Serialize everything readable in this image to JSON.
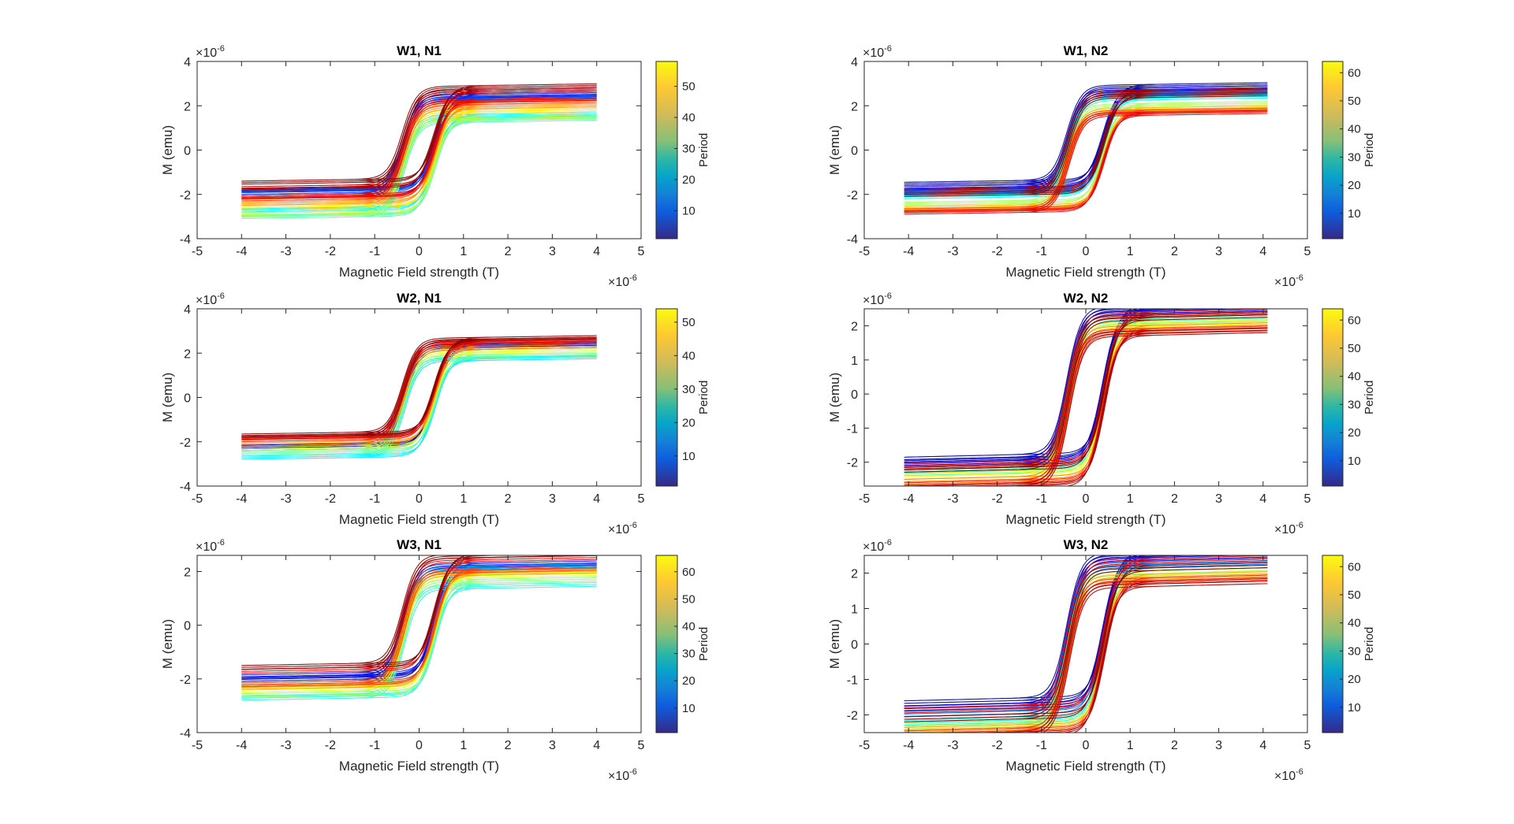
{
  "chart_data": [
    {
      "type": "line",
      "title": "W1, N1",
      "xlabel": "Magnetic Field strength (T)",
      "ylabel": "M (emu)",
      "xlim": [
        -5,
        5
      ],
      "ylim": [
        -4,
        4
      ],
      "xticks": [
        -5,
        -4,
        -3,
        -2,
        -1,
        0,
        1,
        2,
        3,
        4,
        5
      ],
      "yticks": [
        -4,
        -2,
        0,
        2,
        4
      ],
      "x_multiplier": "×10",
      "x_exponent": "-6",
      "y_multiplier": "×10",
      "y_exponent": "-6",
      "coercivity": 0.35,
      "h_max": 4.0,
      "colorbar": {
        "label": "Period",
        "range": [
          1,
          58
        ],
        "ticks": [
          10,
          20,
          30,
          40,
          50
        ]
      },
      "series": [
        {
          "period": 2,
          "m_upper": 2.6,
          "m_lower": -1.7
        },
        {
          "period": 6,
          "m_upper": 2.4,
          "m_lower": -2.0
        },
        {
          "period": 12,
          "m_upper": 2.3,
          "m_lower": -1.8
        },
        {
          "period": 22,
          "m_upper": 1.5,
          "m_lower": -2.6
        },
        {
          "period": 27,
          "m_upper": 1.3,
          "m_lower": -2.9
        },
        {
          "period": 32,
          "m_upper": 1.4,
          "m_lower": -2.8
        },
        {
          "period": 38,
          "m_upper": 1.7,
          "m_lower": -2.5
        },
        {
          "period": 43,
          "m_upper": 1.9,
          "m_lower": -2.3
        },
        {
          "period": 48,
          "m_upper": 2.1,
          "m_lower": -2.1
        },
        {
          "period": 52,
          "m_upper": 2.2,
          "m_lower": -2.0
        },
        {
          "period": 55,
          "m_upper": 2.6,
          "m_lower": -1.6
        },
        {
          "period": 58,
          "m_upper": 2.8,
          "m_lower": -1.35
        }
      ]
    },
    {
      "type": "line",
      "title": "W1, N2",
      "xlabel": "Magnetic Field strength (T)",
      "ylabel": "M (emu)",
      "xlim": [
        -5,
        5
      ],
      "ylim": [
        -4,
        4
      ],
      "xticks": [
        -5,
        -4,
        -3,
        -2,
        -1,
        0,
        1,
        2,
        3,
        4,
        5
      ],
      "yticks": [
        -4,
        -2,
        0,
        2,
        4
      ],
      "x_multiplier": "×10",
      "x_exponent": "-6",
      "y_multiplier": "×10",
      "y_exponent": "-6",
      "coercivity": 0.4,
      "h_max": 4.1,
      "colorbar": {
        "label": "Period",
        "range": [
          1,
          64
        ],
        "ticks": [
          10,
          20,
          30,
          40,
          50,
          60
        ]
      },
      "series": [
        {
          "period": 2,
          "m_upper": 2.85,
          "m_lower": -1.4
        },
        {
          "period": 8,
          "m_upper": 2.7,
          "m_lower": -1.6
        },
        {
          "period": 15,
          "m_upper": 2.5,
          "m_lower": -1.8
        },
        {
          "period": 25,
          "m_upper": 2.3,
          "m_lower": -2.0
        },
        {
          "period": 35,
          "m_upper": 2.0,
          "m_lower": -2.3
        },
        {
          "period": 45,
          "m_upper": 1.8,
          "m_lower": -2.5
        },
        {
          "period": 52,
          "m_upper": 1.7,
          "m_lower": -2.6
        },
        {
          "period": 58,
          "m_upper": 1.6,
          "m_lower": -2.7
        },
        {
          "period": 62,
          "m_upper": 2.6,
          "m_lower": -1.7
        },
        {
          "period": 64,
          "m_upper": 2.4,
          "m_lower": -1.9
        }
      ]
    },
    {
      "type": "line",
      "title": "W2, N1",
      "xlabel": "Magnetic Field strength (T)",
      "ylabel": "M (emu)",
      "xlim": [
        -5,
        5
      ],
      "ylim": [
        -4,
        4
      ],
      "xticks": [
        -5,
        -4,
        -3,
        -2,
        -1,
        0,
        1,
        2,
        3,
        4,
        5
      ],
      "yticks": [
        -4,
        -2,
        0,
        2,
        4
      ],
      "x_multiplier": "×10",
      "x_exponent": "-6",
      "y_multiplier": "×10",
      "y_exponent": "-6",
      "coercivity": 0.35,
      "h_max": 4.0,
      "colorbar": {
        "label": "Period",
        "range": [
          1,
          54
        ],
        "ticks": [
          10,
          20,
          30,
          40,
          50
        ]
      },
      "series": [
        {
          "period": 3,
          "m_upper": 2.3,
          "m_lower": -2.1
        },
        {
          "period": 10,
          "m_upper": 2.2,
          "m_lower": -2.2
        },
        {
          "period": 20,
          "m_upper": 1.7,
          "m_lower": -2.6
        },
        {
          "period": 26,
          "m_upper": 1.8,
          "m_lower": -2.4
        },
        {
          "period": 32,
          "m_upper": 2.0,
          "m_lower": -2.2
        },
        {
          "period": 40,
          "m_upper": 2.2,
          "m_lower": -2.0
        },
        {
          "period": 46,
          "m_upper": 2.4,
          "m_lower": -1.8
        },
        {
          "period": 50,
          "m_upper": 2.5,
          "m_lower": -1.7
        },
        {
          "period": 54,
          "m_upper": 2.6,
          "m_lower": -1.6
        }
      ]
    },
    {
      "type": "line",
      "title": "W2, N2",
      "xlabel": "Magnetic Field strength (T)",
      "ylabel": "M (emu)",
      "xlim": [
        -5,
        5
      ],
      "ylim": [
        -2.7,
        2.5
      ],
      "xticks": [
        -5,
        -4,
        -3,
        -2,
        -1,
        0,
        1,
        2,
        3,
        4,
        5
      ],
      "yticks": [
        -2,
        -1,
        0,
        1,
        2
      ],
      "x_multiplier": "×10",
      "x_exponent": "-6",
      "y_multiplier": "×10",
      "y_exponent": "-6",
      "coercivity": 0.4,
      "h_max": 4.1,
      "colorbar": {
        "label": "Period",
        "range": [
          1,
          64
        ],
        "ticks": [
          10,
          20,
          30,
          40,
          50,
          60
        ]
      },
      "series": [
        {
          "period": 2,
          "m_upper": 2.5,
          "m_lower": -1.8
        },
        {
          "period": 8,
          "m_upper": 2.4,
          "m_lower": -1.9
        },
        {
          "period": 20,
          "m_upper": 2.3,
          "m_lower": -2.1
        },
        {
          "period": 30,
          "m_upper": 2.1,
          "m_lower": -2.2
        },
        {
          "period": 40,
          "m_upper": 2.0,
          "m_lower": -2.3
        },
        {
          "period": 48,
          "m_upper": 1.9,
          "m_lower": -2.45
        },
        {
          "period": 55,
          "m_upper": 1.8,
          "m_lower": -2.55
        },
        {
          "period": 62,
          "m_upper": 1.75,
          "m_lower": -2.65
        },
        {
          "period": 58,
          "m_upper": 2.3,
          "m_lower": -2.0
        },
        {
          "period": 64,
          "m_upper": 2.2,
          "m_lower": -2.1
        }
      ]
    },
    {
      "type": "line",
      "title": "W3, N1",
      "xlabel": "Magnetic Field strength (T)",
      "ylabel": "M (emu)",
      "xlim": [
        -5,
        5
      ],
      "ylim": [
        -4,
        2.6
      ],
      "xticks": [
        -5,
        -4,
        -3,
        -2,
        -1,
        0,
        1,
        2,
        3,
        4,
        5
      ],
      "yticks": [
        -4,
        -2,
        0,
        2
      ],
      "x_multiplier": "×10",
      "x_exponent": "-6",
      "y_multiplier": "×10",
      "y_exponent": "-6",
      "coercivity": 0.35,
      "h_max": 4.0,
      "colorbar": {
        "label": "Period",
        "range": [
          1,
          66
        ],
        "ticks": [
          10,
          20,
          30,
          40,
          50,
          60
        ]
      },
      "series": [
        {
          "period": 3,
          "m_upper": 2.1,
          "m_lower": -1.9
        },
        {
          "period": 10,
          "m_upper": 2.2,
          "m_lower": -1.8
        },
        {
          "period": 20,
          "m_upper": 2.1,
          "m_lower": -2.1
        },
        {
          "period": 28,
          "m_upper": 1.4,
          "m_lower": -2.6
        },
        {
          "period": 34,
          "m_upper": 1.6,
          "m_lower": -2.5
        },
        {
          "period": 40,
          "m_upper": 1.8,
          "m_lower": -2.3
        },
        {
          "period": 48,
          "m_upper": 1.9,
          "m_lower": -2.2
        },
        {
          "period": 54,
          "m_upper": 2.0,
          "m_lower": -2.1
        },
        {
          "period": 60,
          "m_upper": 2.4,
          "m_lower": -1.6
        },
        {
          "period": 66,
          "m_upper": 2.55,
          "m_lower": -1.45
        }
      ]
    },
    {
      "type": "line",
      "title": "W3, N2",
      "xlabel": "Magnetic Field strength (T)",
      "ylabel": "M (emu)",
      "xlim": [
        -5,
        5
      ],
      "ylim": [
        -2.5,
        2.5
      ],
      "xticks": [
        -5,
        -4,
        -3,
        -2,
        -1,
        0,
        1,
        2,
        3,
        4,
        5
      ],
      "yticks": [
        -2,
        -1,
        0,
        1,
        2
      ],
      "x_multiplier": "×10",
      "x_exponent": "-6",
      "y_multiplier": "×10",
      "y_exponent": "-6",
      "coercivity": 0.4,
      "h_max": 4.1,
      "colorbar": {
        "label": "Period",
        "range": [
          1,
          64
        ],
        "ticks": [
          10,
          20,
          30,
          40,
          50,
          60
        ]
      },
      "series": [
        {
          "period": 2,
          "m_upper": 2.5,
          "m_lower": -1.55
        },
        {
          "period": 8,
          "m_upper": 2.4,
          "m_lower": -1.7
        },
        {
          "period": 16,
          "m_upper": 2.2,
          "m_lower": -1.85
        },
        {
          "period": 26,
          "m_upper": 2.1,
          "m_lower": -2.1
        },
        {
          "period": 36,
          "m_upper": 1.95,
          "m_lower": -2.2
        },
        {
          "period": 46,
          "m_upper": 1.85,
          "m_lower": -2.3
        },
        {
          "period": 54,
          "m_upper": 1.75,
          "m_lower": -2.4
        },
        {
          "period": 62,
          "m_upper": 1.65,
          "m_lower": -2.5
        },
        {
          "period": 58,
          "m_upper": 2.3,
          "m_lower": -1.75
        },
        {
          "period": 64,
          "m_upper": 2.1,
          "m_lower": -2.0
        }
      ]
    }
  ]
}
